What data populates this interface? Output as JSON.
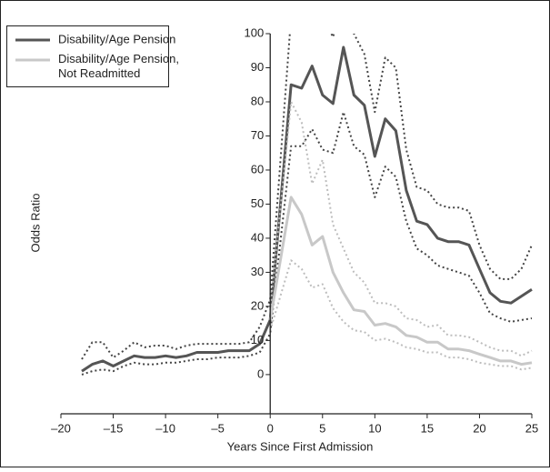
{
  "chart_data": {
    "type": "line",
    "xlabel": "Years Since First Admission",
    "ylabel": "Odds Ratio",
    "x": [
      -18,
      -17,
      -16,
      -15,
      -14,
      -13,
      -12,
      -11,
      -10,
      -9,
      -8,
      -7,
      -6,
      -5,
      -4,
      -3,
      -2,
      -1,
      0,
      2,
      3,
      4,
      5,
      6,
      7,
      8,
      9,
      10,
      11,
      12,
      13,
      14,
      15,
      16,
      17,
      18,
      19,
      20,
      21,
      22,
      23,
      24,
      25
    ],
    "series": [
      {
        "name": "Disability/Age Pension",
        "color": "#555555",
        "style": "solid",
        "values": [
          1,
          3,
          4,
          2.5,
          4,
          5.5,
          5,
          5,
          5.5,
          5,
          5.5,
          6.5,
          6.5,
          6.5,
          7,
          7,
          7,
          9,
          16,
          85,
          84,
          90.5,
          82,
          79.5,
          96,
          82,
          79,
          64,
          75,
          71.5,
          54,
          45,
          44,
          40,
          39,
          39,
          38,
          31,
          24,
          21.5,
          21,
          23,
          25
        ]
      },
      {
        "color": "#444444",
        "style": "dotted",
        "values": [
          4.5,
          9.5,
          9.5,
          5,
          7,
          9.5,
          8,
          8.5,
          8.5,
          7.5,
          8.5,
          9,
          9,
          9,
          9,
          9,
          9.5,
          14,
          22,
          105,
          104,
          108,
          105,
          99,
          110,
          100,
          94,
          77,
          93,
          90,
          66,
          55,
          54,
          50,
          49,
          49,
          48,
          38,
          31,
          28,
          28,
          31,
          38
        ]
      },
      {
        "color": "#444444",
        "style": "dotted",
        "values": [
          0,
          1,
          1.5,
          1,
          2.5,
          3.5,
          3,
          3,
          3.5,
          3.5,
          4,
          4.5,
          4.5,
          5,
          5,
          5,
          5.5,
          6.5,
          12,
          67,
          67,
          72,
          66,
          65,
          77,
          67,
          64.5,
          52,
          61,
          58,
          45,
          37,
          35,
          32,
          31,
          30,
          29,
          24,
          18,
          16.5,
          15.5,
          16,
          16.5
        ]
      },
      {
        "name": "Disability/Age Pension,\nNot Readmitted",
        "color": "#c8c8c8",
        "style": "solid",
        "values": [
          null,
          null,
          null,
          null,
          null,
          null,
          null,
          null,
          null,
          null,
          null,
          null,
          null,
          null,
          null,
          null,
          null,
          null,
          16,
          52,
          47,
          38,
          40.5,
          30,
          24,
          19,
          18.5,
          14.5,
          15,
          14,
          11.5,
          11,
          9.5,
          9.5,
          7.5,
          7.5,
          7,
          6,
          5,
          4,
          4,
          3,
          3.5
        ]
      },
      {
        "color": "#bdbdbd",
        "style": "dotted",
        "values": [
          null,
          null,
          null,
          null,
          null,
          null,
          null,
          null,
          null,
          null,
          null,
          null,
          null,
          null,
          null,
          null,
          null,
          null,
          19,
          80,
          74,
          56,
          63,
          44,
          37,
          30,
          27,
          21,
          21,
          20,
          16.5,
          16,
          14,
          14.5,
          11.5,
          11.5,
          11,
          9.5,
          8,
          7,
          7,
          5.5,
          7
        ]
      },
      {
        "color": "#bdbdbd",
        "style": "dotted",
        "values": [
          null,
          null,
          null,
          null,
          null,
          null,
          null,
          null,
          null,
          null,
          null,
          null,
          null,
          null,
          null,
          null,
          null,
          null,
          13,
          33.5,
          31,
          25.5,
          26.5,
          19.5,
          15.5,
          13,
          12.5,
          10,
          10.5,
          9.5,
          8,
          7.5,
          6.5,
          6.5,
          5,
          5,
          4.5,
          3.5,
          3,
          2.5,
          2.5,
          1.5,
          2
        ]
      }
    ],
    "xlim": [
      -20,
      25
    ],
    "xticks": [
      {
        "value": -20,
        "label": "–20"
      },
      {
        "value": -15,
        "label": "–15"
      },
      {
        "value": -10,
        "label": "–10"
      },
      {
        "value": -5,
        "label": "–5"
      },
      0,
      5,
      10,
      15,
      20,
      25
    ],
    "ylim": [
      -11.5,
      100
    ],
    "yticks": [
      0,
      10,
      20,
      30,
      40,
      50,
      60,
      70,
      80,
      90,
      100
    ],
    "grid": false,
    "legend": "upper left"
  }
}
